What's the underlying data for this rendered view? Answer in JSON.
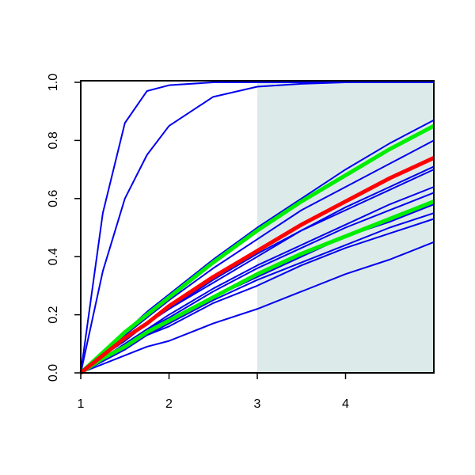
{
  "chart_data": {
    "type": "line",
    "x": [
      1,
      1.25,
      1.5,
      1.75,
      2,
      2.5,
      3,
      3.5,
      4,
      4.5,
      5
    ],
    "xlim": [
      1,
      5
    ],
    "ylim": [
      0,
      1
    ],
    "xticks": [
      1,
      2,
      3,
      4
    ],
    "yticks": [
      {
        "value": 0,
        "label": "0.0"
      },
      0.2,
      0.4,
      0.6,
      0.8,
      {
        "value": 1,
        "label": "1.0"
      }
    ],
    "shade": {
      "xlim": [
        3,
        5
      ],
      "color": "#ddeaea"
    },
    "series": [
      {
        "color": "#0000ee",
        "width": 2,
        "values": [
          0,
          0.55,
          0.86,
          0.97,
          0.99,
          1,
          1,
          1,
          1,
          1,
          1
        ]
      },
      {
        "color": "#0000ee",
        "width": 2,
        "values": [
          0,
          0.35,
          0.6,
          0.75,
          0.85,
          0.95,
          0.985,
          0.995,
          1,
          1,
          1
        ]
      },
      {
        "color": "#0000ee",
        "width": 2,
        "values": [
          0,
          0.07,
          0.14,
          0.21,
          0.27,
          0.39,
          0.5,
          0.6,
          0.7,
          0.79,
          0.87
        ]
      },
      {
        "color": "#0000ee",
        "width": 2,
        "values": [
          0,
          0.07,
          0.13,
          0.19,
          0.25,
          0.36,
          0.46,
          0.56,
          0.64,
          0.72,
          0.8
        ]
      },
      {
        "color": "#0000ee",
        "width": 2,
        "values": [
          0,
          0.06,
          0.11,
          0.17,
          0.22,
          0.32,
          0.41,
          0.49,
          0.57,
          0.64,
          0.71
        ]
      },
      {
        "color": "#0000ee",
        "width": 2,
        "values": [
          0,
          0.06,
          0.11,
          0.17,
          0.22,
          0.31,
          0.4,
          0.49,
          0.56,
          0.63,
          0.7
        ]
      },
      {
        "color": "#0000ee",
        "width": 2,
        "values": [
          0,
          0.05,
          0.1,
          0.15,
          0.2,
          0.29,
          0.37,
          0.44,
          0.51,
          0.58,
          0.64
        ]
      },
      {
        "color": "#0000ee",
        "width": 2,
        "values": [
          0,
          0.05,
          0.1,
          0.15,
          0.19,
          0.28,
          0.36,
          0.43,
          0.5,
          0.56,
          0.62
        ]
      },
      {
        "color": "#0000ee",
        "width": 2,
        "values": [
          0,
          0.05,
          0.09,
          0.14,
          0.18,
          0.26,
          0.33,
          0.4,
          0.47,
          0.52,
          0.58
        ]
      },
      {
        "color": "#0000ee",
        "width": 2,
        "values": [
          0,
          0.05,
          0.09,
          0.13,
          0.17,
          0.25,
          0.32,
          0.38,
          0.44,
          0.5,
          0.55
        ]
      },
      {
        "color": "#0000ee",
        "width": 2,
        "values": [
          0,
          0.04,
          0.08,
          0.13,
          0.16,
          0.24,
          0.3,
          0.37,
          0.43,
          0.48,
          0.53
        ]
      },
      {
        "color": "#0000ee",
        "width": 2,
        "values": [
          0,
          0.03,
          0.06,
          0.09,
          0.11,
          0.17,
          0.22,
          0.28,
          0.34,
          0.39,
          0.45
        ]
      },
      {
        "color": "#00ee00",
        "width": 5,
        "values": [
          0,
          0.07,
          0.14,
          0.2,
          0.26,
          0.38,
          0.49,
          0.59,
          0.68,
          0.77,
          0.85
        ]
      },
      {
        "color": "#00ee00",
        "width": 5,
        "values": [
          0,
          0.05,
          0.09,
          0.14,
          0.18,
          0.26,
          0.34,
          0.41,
          0.47,
          0.53,
          0.59
        ]
      },
      {
        "color": "#ff0000",
        "width": 5,
        "values": [
          0,
          0.06,
          0.12,
          0.17,
          0.23,
          0.33,
          0.42,
          0.51,
          0.59,
          0.67,
          0.74
        ]
      }
    ]
  }
}
